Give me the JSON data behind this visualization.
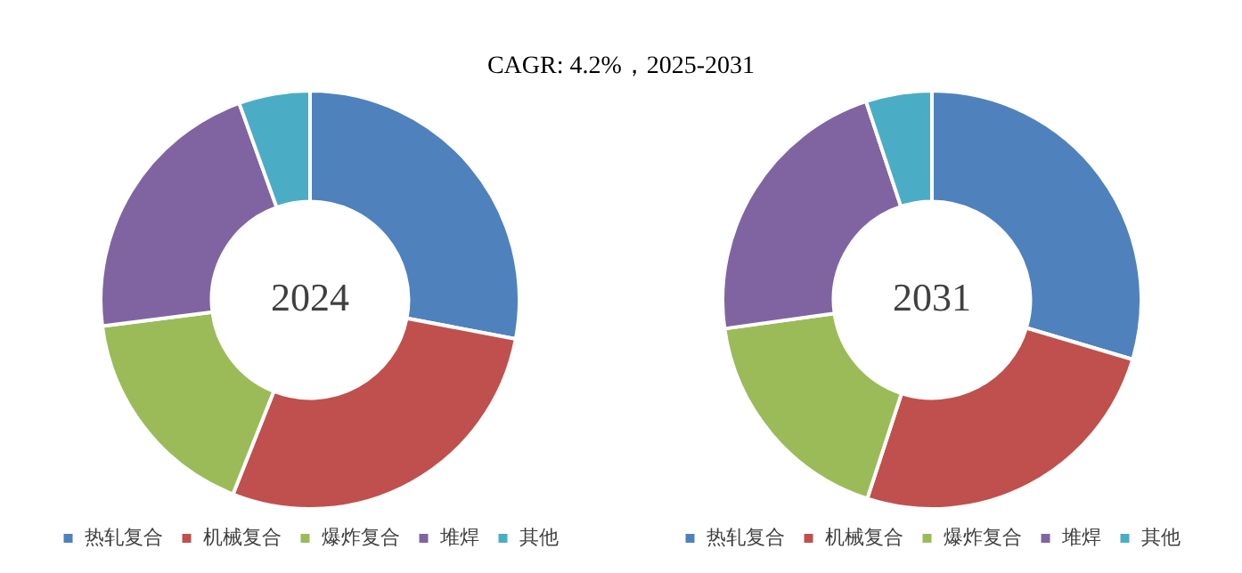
{
  "chart_data": [
    {
      "type": "donut",
      "title": "CAGR:   4.2%，2025-2031",
      "categories": [
        "热轧复合",
        "机械复合",
        "爆炸复合",
        "堆焊",
        "其他"
      ],
      "values": [
        28,
        28,
        17,
        21.5,
        5.5
      ],
      "colors": [
        "#4f81bd",
        "#c0504d",
        "#9bbb59",
        "#8064a2",
        "#4bacc6"
      ],
      "annotations": [
        "2024"
      ],
      "legend": "bottom"
    },
    {
      "type": "donut",
      "categories": [
        "热轧复合",
        "机械复合",
        "爆炸复合",
        "堆焊",
        "其他"
      ],
      "values": [
        29.6,
        25.4,
        17.8,
        22.1,
        5.1
      ],
      "colors": [
        "#4f81bd",
        "#c0504d",
        "#9bbb59",
        "#8064a2",
        "#4bacc6"
      ],
      "annotations": [
        "2031"
      ],
      "legend": "bottom"
    }
  ]
}
